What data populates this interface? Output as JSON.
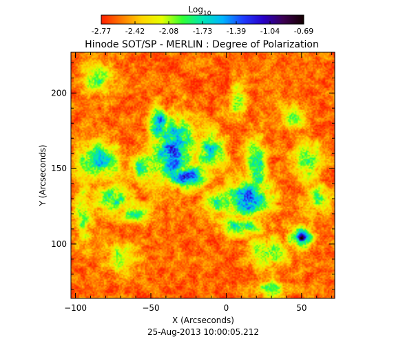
{
  "chart_data": {
    "type": "heatmap",
    "title": "Hinode SOT/SP - MERLIN : Degree of Polarization",
    "subtitle": "25-Aug-2013 10:00:05.212",
    "xlabel": "X (Arcseconds)",
    "ylabel": "Y (Arcseconds)",
    "xlim": [
      -103,
      72
    ],
    "ylim": [
      64,
      227
    ],
    "x_ticks": [
      -100,
      -50,
      0,
      50
    ],
    "y_ticks": [
      100,
      150,
      200
    ],
    "colorbar": {
      "label_base": "Log",
      "label_sub": "10",
      "ticks": [
        "-2.77",
        "-2.42",
        "-2.08",
        "-1.73",
        "-1.39",
        "-1.04",
        "-0.69"
      ],
      "range": [
        -2.77,
        -0.69
      ],
      "colormap": [
        "#ff1f00",
        "#ff7a00",
        "#ffd400",
        "#e6ff00",
        "#33ff33",
        "#00e6b4",
        "#00b4ff",
        "#1f3dff",
        "#2800c8",
        "#3c0050",
        "#140000"
      ]
    },
    "grid": false,
    "background_level": -2.6,
    "features": [
      {
        "x": 0,
        "y": 0,
        "comment": ""
      }
    ],
    "regions": [
      {
        "x": -35,
        "y": 162,
        "sx": 14,
        "sy": 20,
        "level": -1.35
      },
      {
        "x": -27,
        "y": 145,
        "sx": 14,
        "sy": 8,
        "level": -1.45
      },
      {
        "x": -45,
        "y": 180,
        "sx": 6,
        "sy": 10,
        "level": -1.5
      },
      {
        "x": -85,
        "y": 155,
        "sx": 14,
        "sy": 12,
        "level": -1.7
      },
      {
        "x": -75,
        "y": 130,
        "sx": 12,
        "sy": 8,
        "level": -1.8
      },
      {
        "x": -55,
        "y": 150,
        "sx": 10,
        "sy": 10,
        "level": -1.8
      },
      {
        "x": -60,
        "y": 120,
        "sx": 10,
        "sy": 6,
        "level": -1.9
      },
      {
        "x": -10,
        "y": 162,
        "sx": 10,
        "sy": 12,
        "level": -1.75
      },
      {
        "x": 8,
        "y": 195,
        "sx": 5,
        "sy": 10,
        "level": -1.9
      },
      {
        "x": 15,
        "y": 130,
        "sx": 14,
        "sy": 12,
        "level": -1.35
      },
      {
        "x": 20,
        "y": 150,
        "sx": 6,
        "sy": 18,
        "level": -1.55
      },
      {
        "x": 10,
        "y": 112,
        "sx": 14,
        "sy": 6,
        "level": -1.75
      },
      {
        "x": -5,
        "y": 128,
        "sx": 10,
        "sy": 8,
        "level": -1.75
      },
      {
        "x": 50,
        "y": 104,
        "sx": 4,
        "sy": 3,
        "level": -0.75
      },
      {
        "x": 50,
        "y": 104,
        "sx": 8,
        "sy": 7,
        "level": -1.5
      },
      {
        "x": 28,
        "y": 95,
        "sx": 12,
        "sy": 10,
        "level": -1.95
      },
      {
        "x": 55,
        "y": 155,
        "sx": 10,
        "sy": 12,
        "level": -1.95
      },
      {
        "x": 60,
        "y": 130,
        "sx": 8,
        "sy": 10,
        "level": -2.0
      },
      {
        "x": -85,
        "y": 210,
        "sx": 10,
        "sy": 10,
        "level": -2.0
      },
      {
        "x": -70,
        "y": 90,
        "sx": 10,
        "sy": 10,
        "level": -2.05
      },
      {
        "x": 30,
        "y": 70,
        "sx": 10,
        "sy": 6,
        "level": -2.0
      },
      {
        "x": -95,
        "y": 120,
        "sx": 6,
        "sy": 20,
        "level": -2.0
      },
      {
        "x": 45,
        "y": 185,
        "sx": 8,
        "sy": 8,
        "level": -2.05
      }
    ]
  }
}
